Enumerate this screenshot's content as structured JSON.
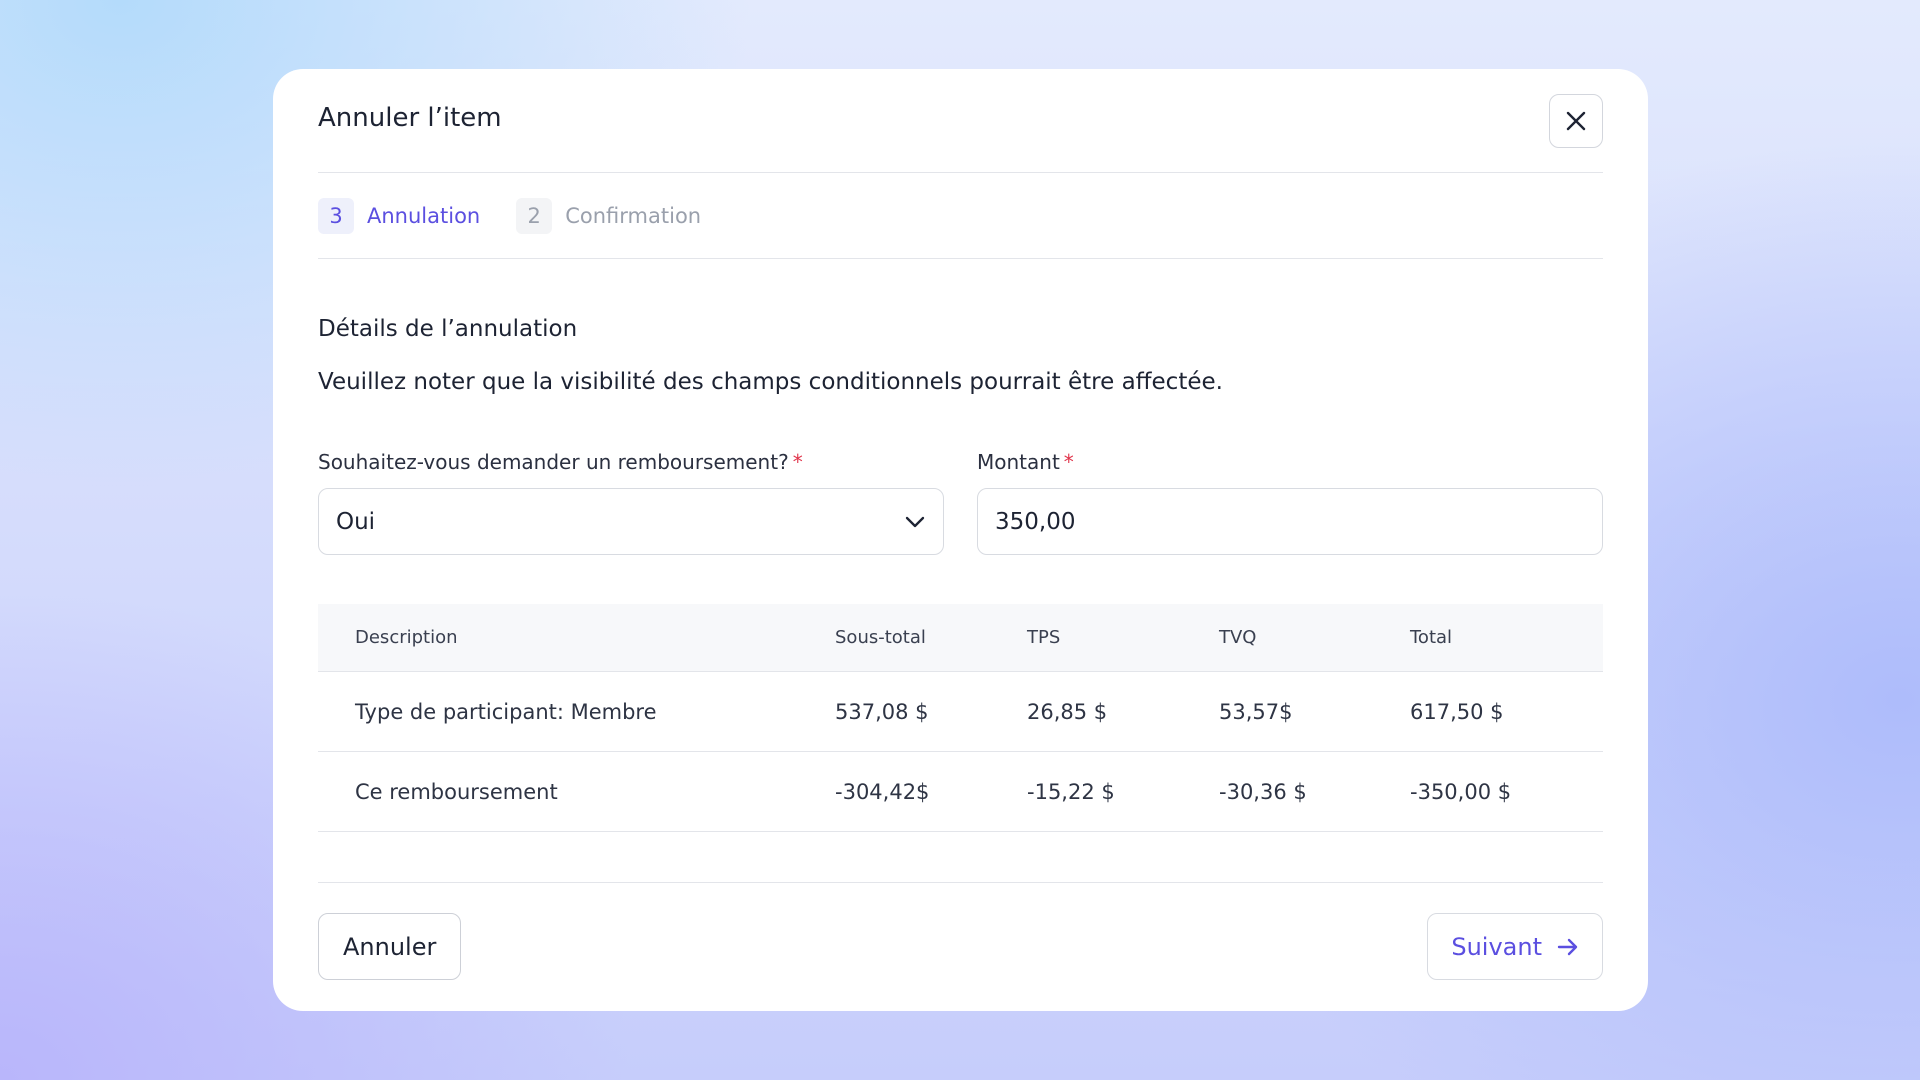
{
  "modal": {
    "title": "Annuler l’item",
    "close_icon": "close-icon"
  },
  "stepper": {
    "steps": [
      {
        "number": "3",
        "label": "Annulation",
        "active": true
      },
      {
        "number": "2",
        "label": "Confirmation",
        "active": false
      }
    ]
  },
  "section": {
    "title": "Détails de l’annulation",
    "description": "Veuillez noter que la visibilité des champs conditionnels pourrait être affectée."
  },
  "form": {
    "refund": {
      "label": "Souhaitez-vous demander un remboursement?",
      "required_mark": "*",
      "value": "Oui",
      "icon": "chevron-down-icon"
    },
    "amount": {
      "label": "Montant",
      "required_mark": "*",
      "value": "350,00"
    }
  },
  "table": {
    "headers": [
      "Description",
      "Sous-total",
      "TPS",
      "TVQ",
      "Total"
    ],
    "rows": [
      [
        "Type de participant: Membre",
        "537,08 $",
        "26,85 $",
        "53,57$",
        "617,50 $"
      ],
      [
        "Ce remboursement",
        "-304,42$",
        "-15,22 $",
        "-30,36 $",
        "-350,00 $"
      ]
    ]
  },
  "footer": {
    "cancel_label": "Annuler",
    "next_label": "Suivant",
    "next_icon": "arrow-right-icon"
  },
  "colors": {
    "accent": "#5b4fe0",
    "required": "#e0334a",
    "text": "#1d2333",
    "muted": "#9aa0ac"
  }
}
